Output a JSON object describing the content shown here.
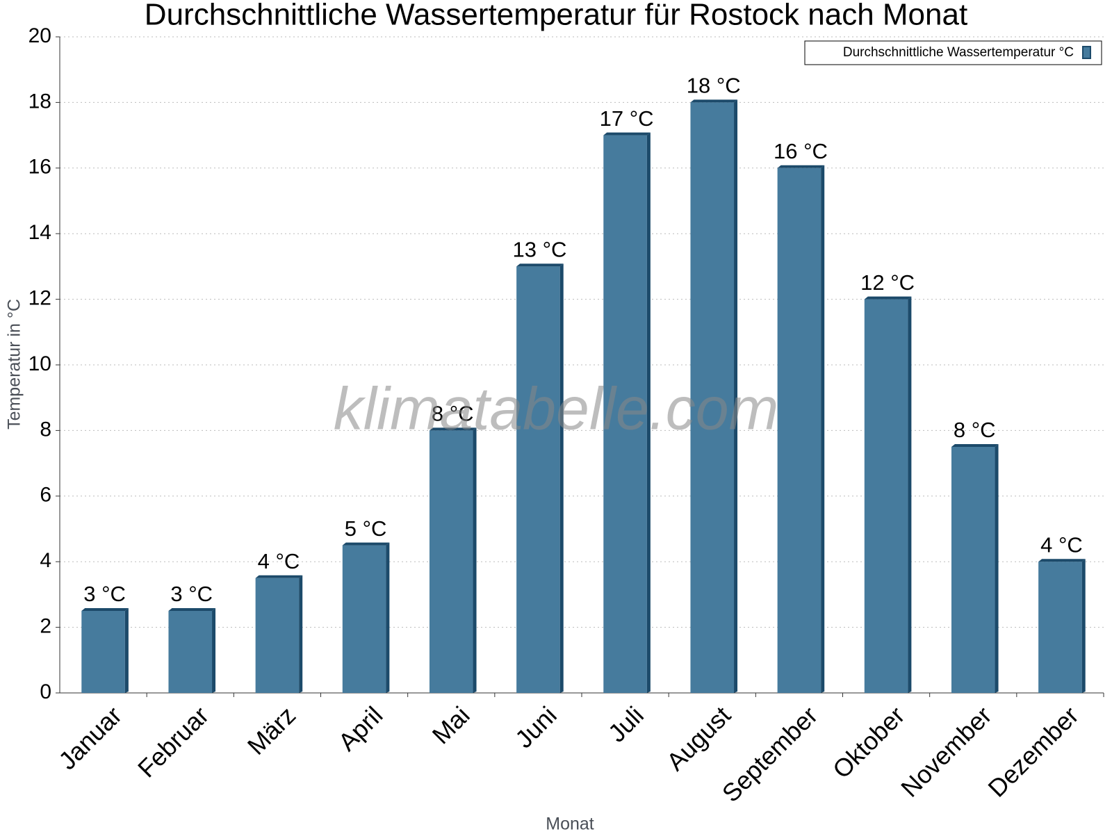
{
  "chart_data": {
    "type": "bar",
    "title": "Durchschnittliche Wassertemperatur für Rostock nach Monat",
    "x_label": "Monat",
    "y_label": "Temperatur in °C",
    "watermark": "klimatabelle.com",
    "categories": [
      "Januar",
      "Februar",
      "März",
      "April",
      "Mai",
      "Juni",
      "Juli",
      "August",
      "September",
      "Oktober",
      "November",
      "Dezember"
    ],
    "series": [
      {
        "name": "Durchschnittliche Wassertemperatur °C",
        "color": "#467b9d",
        "values": [
          2.5,
          2.5,
          3.5,
          4.5,
          8,
          13,
          17,
          18,
          16,
          12,
          7.5,
          4
        ],
        "value_labels": [
          "3 °C",
          "3 °C",
          "4 °C",
          "5 °C",
          "8 °C",
          "13 °C",
          "17 °C",
          "18 °C",
          "16 °C",
          "12 °C",
          "8 °C",
          "4 °C"
        ]
      }
    ],
    "ylim": [
      0,
      20
    ],
    "yticks": [
      0,
      2,
      4,
      6,
      8,
      10,
      12,
      14,
      16,
      18,
      20
    ],
    "grid": true,
    "legend": "top-right"
  }
}
